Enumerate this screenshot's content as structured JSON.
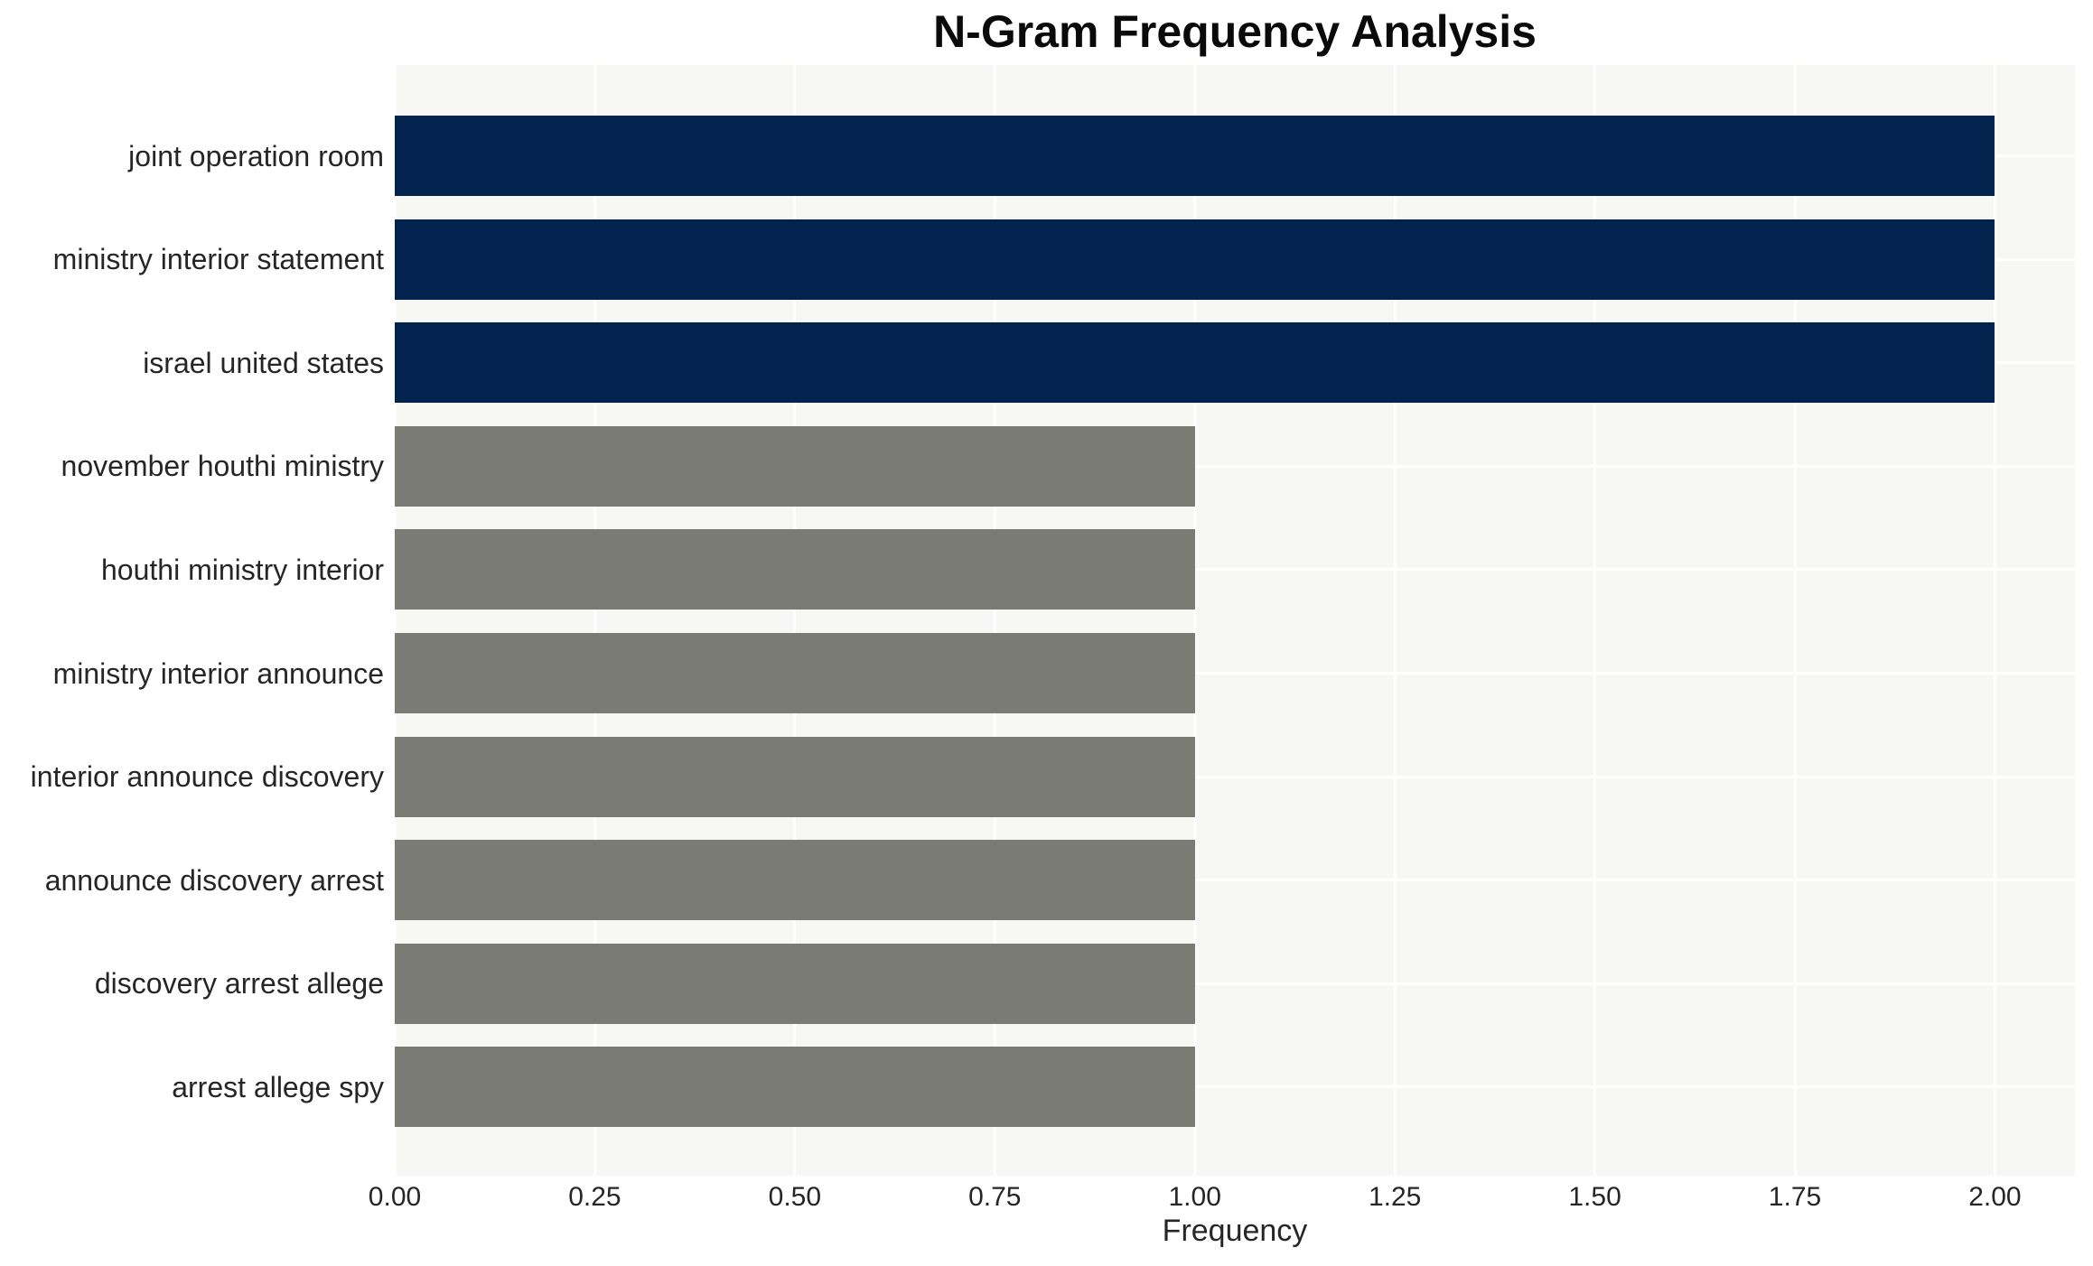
{
  "chart_data": {
    "type": "bar",
    "orientation": "horizontal",
    "title": "N-Gram Frequency Analysis",
    "xlabel": "Frequency",
    "ylabel": "",
    "categories": [
      "joint operation room",
      "ministry interior statement",
      "israel united states",
      "november houthi ministry",
      "houthi ministry interior",
      "ministry interior announce",
      "interior announce discovery",
      "announce discovery arrest",
      "discovery arrest allege",
      "arrest allege spy"
    ],
    "values": [
      2,
      2,
      2,
      1,
      1,
      1,
      1,
      1,
      1,
      1
    ],
    "bar_colors": [
      "#02234e",
      "#02234e",
      "#02234e",
      "#7b7b76",
      "#7b7b76",
      "#7b7b76",
      "#7b7b76",
      "#7b7b76",
      "#7b7b76",
      "#7b7b76"
    ],
    "xlim": [
      0,
      2.1
    ],
    "xticks": [
      0,
      0.25,
      0.5,
      0.75,
      1.0,
      1.25,
      1.5,
      1.75,
      2.0
    ],
    "xtick_labels": [
      "0.00",
      "0.25",
      "0.50",
      "0.75",
      "1.00",
      "1.25",
      "1.50",
      "1.75",
      "2.00"
    ],
    "grid": true,
    "legend": false,
    "colors": {
      "highlight": "#02234e",
      "base": "#7b7b76",
      "plot_background": "#f7f7f6",
      "figure_background": "#ffffff",
      "gridline": "#ffffff",
      "text": "#262626",
      "title_text": "#0a0a0a"
    }
  }
}
